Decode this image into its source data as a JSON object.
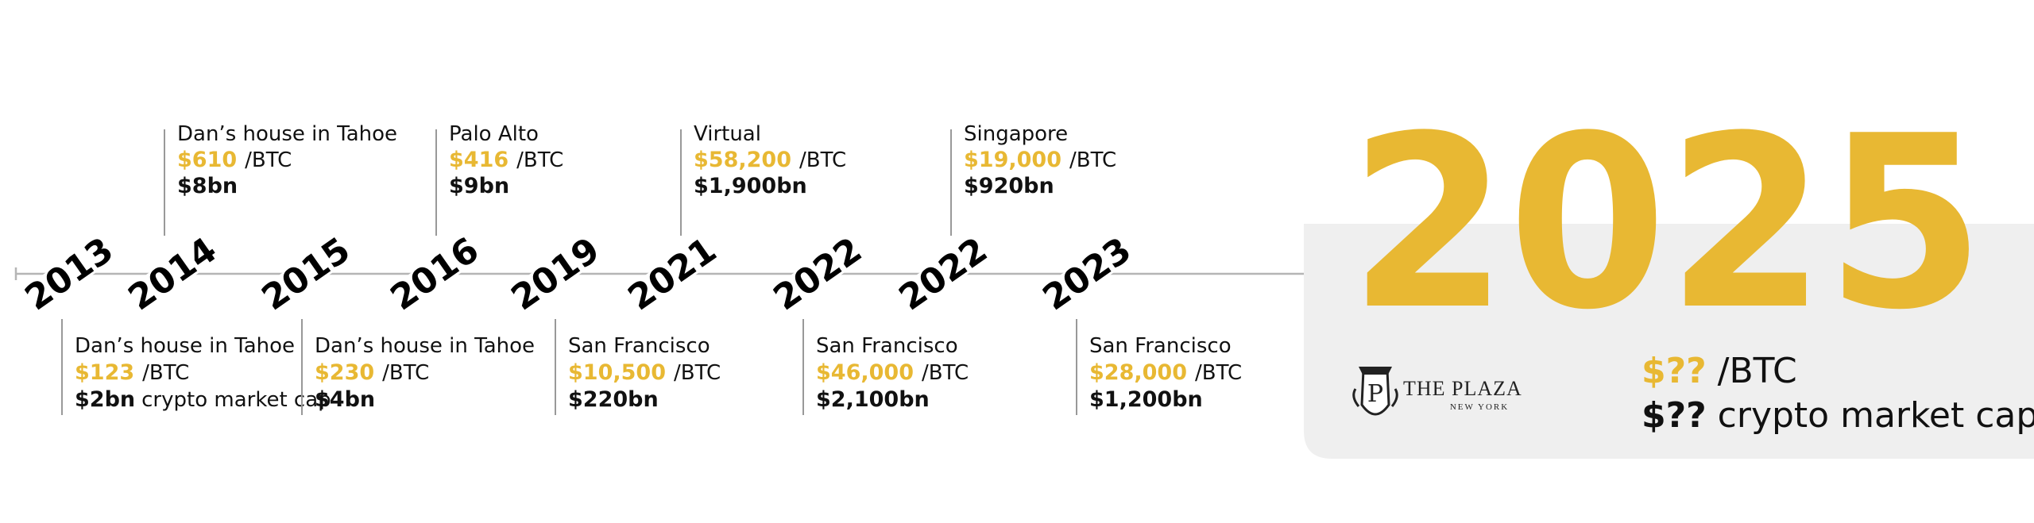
{
  "timeline": {
    "price_unit": "/BTC",
    "cap_note": "crypto market cap",
    "events": [
      {
        "year": "2013",
        "place": "Dan’s house in Tahoe",
        "price": "$123",
        "market_cap": "$2bn"
      },
      {
        "year": "2014",
        "place": "Dan’s house in Tahoe",
        "price": "$610",
        "market_cap": "$8bn"
      },
      {
        "year": "2015",
        "place": "Dan’s house in Tahoe",
        "price": "$230",
        "market_cap": "$4bn"
      },
      {
        "year": "2016",
        "place": "Palo Alto",
        "price": "$416",
        "market_cap": "$9bn"
      },
      {
        "year": "2019",
        "place": "San Francisco",
        "price": "$10,500",
        "market_cap": "$220bn"
      },
      {
        "year": "2021",
        "place": "Virtual",
        "price": "$58,200",
        "market_cap": "$1,900bn"
      },
      {
        "year": "2022",
        "place": "San Francisco",
        "price": "$46,000",
        "market_cap": "$2,100bn"
      },
      {
        "year": "2022",
        "place": "Singapore",
        "price": "$19,000",
        "market_cap": "$920bn"
      },
      {
        "year": "2023",
        "place": "San Francisco",
        "price": "$28,000",
        "market_cap": "$1,200bn"
      }
    ],
    "final": {
      "year": "2025",
      "price": "$??",
      "market_cap": "$??",
      "venue": "THE PLAZA",
      "venue_city": "NEW YORK"
    }
  }
}
